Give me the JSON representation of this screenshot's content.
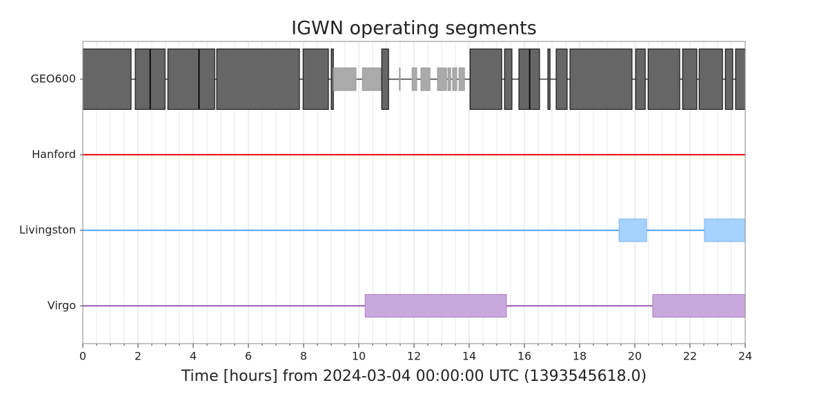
{
  "chart_data": {
    "type": "segments",
    "title": "IGWN operating segments",
    "xlabel": "Time [hours] from 2024-03-04 00:00:00 UTC (1393545618.0)",
    "xlim": [
      0,
      24
    ],
    "xticks": [
      0,
      2,
      4,
      6,
      8,
      10,
      12,
      14,
      16,
      18,
      20,
      22,
      24
    ],
    "grid": true,
    "series": [
      {
        "name": "GEO600",
        "color": "#666666",
        "known": [
          [
            0,
            24
          ]
        ],
        "groups": [
          {
            "style": "tall",
            "color": "#666666",
            "edge": "#000000",
            "segments": [
              [
                0,
                1.75
              ],
              [
                1.9,
                2.43
              ],
              [
                2.45,
                2.98
              ],
              [
                3.08,
                4.2
              ],
              [
                4.22,
                4.78
              ],
              [
                4.85,
                7.85
              ],
              [
                7.98,
                8.9
              ],
              [
                9.0,
                9.08
              ],
              [
                10.83,
                11.08
              ],
              [
                14.03,
                15.18
              ],
              [
                15.28,
                15.55
              ],
              [
                15.8,
                16.18
              ],
              [
                16.2,
                16.55
              ],
              [
                16.85,
                16.93
              ],
              [
                17.15,
                17.55
              ],
              [
                17.65,
                19.9
              ],
              [
                20.03,
                20.38
              ],
              [
                20.48,
                21.63
              ],
              [
                21.73,
                22.25
              ],
              [
                22.33,
                23.18
              ],
              [
                23.28,
                23.55
              ],
              [
                23.65,
                24
              ]
            ]
          },
          {
            "style": "short",
            "color": "#aaaaaa",
            "edge": "#999999",
            "segments": [
              [
                9.08,
                9.9
              ],
              [
                10.13,
                10.8
              ],
              [
                11.47,
                11.5
              ],
              [
                11.93,
                12.1
              ],
              [
                12.25,
                12.58
              ],
              [
                12.85,
                13.18
              ],
              [
                13.23,
                13.33
              ],
              [
                13.4,
                13.55
              ],
              [
                13.63,
                13.83
              ]
            ]
          }
        ]
      },
      {
        "name": "Hanford",
        "color": "#ee0000",
        "known": [
          [
            0,
            24
          ]
        ],
        "groups": []
      },
      {
        "name": "Livingston",
        "color": "#4ba6ff",
        "known": [
          [
            0,
            24
          ]
        ],
        "groups": [
          {
            "style": "short",
            "color": "#a6d2ff",
            "edge": "#7ab8f0",
            "segments": [
              [
                19.43,
                20.43
              ],
              [
                22.53,
                24
              ]
            ]
          }
        ]
      },
      {
        "name": "Virgo",
        "color": "#9b59b6",
        "known": [
          [
            0,
            24
          ]
        ],
        "groups": [
          {
            "style": "short",
            "color": "#c9a8dc",
            "edge": "#a87bc4",
            "segments": [
              [
                10.23,
                15.35
              ],
              [
                20.65,
                24
              ]
            ]
          }
        ]
      }
    ]
  }
}
